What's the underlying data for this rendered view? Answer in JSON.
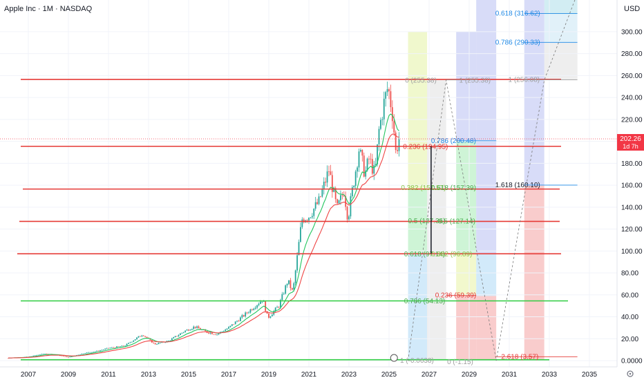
{
  "header": {
    "title": "Apple Inc · 1M · NASDAQ",
    "currency": "USD"
  },
  "price_label": {
    "value": "202.26",
    "countdown": "1d 7h"
  },
  "colors": {
    "up": "#26a69a",
    "down": "#ef5350",
    "ema_fast": "#22c55e",
    "ema_slow": "#ef4444",
    "hline_red": "#e53935",
    "hline_green": "#2ecc40",
    "accent": "#3b82f6"
  },
  "chart_data": {
    "type": "candlestick",
    "title": "Apple Inc · 1M · NASDAQ",
    "x_ticks": [
      "2007",
      "2009",
      "2011",
      "2013",
      "2015",
      "2017",
      "2019",
      "2021",
      "2023",
      "2025",
      "2027",
      "2029",
      "2031",
      "2033",
      "2035"
    ],
    "y_ticks": [
      "0.0000",
      "20.00",
      "40.00",
      "60.00",
      "80.00",
      "100.00",
      "120.00",
      "140.00",
      "160.00",
      "180.00",
      "200.00",
      "220.00",
      "240.00",
      "260.00",
      "280.00",
      "300.00"
    ],
    "ylim": [
      0,
      310
    ],
    "xlim": [
      2006,
      2035.5
    ],
    "last_price": 202.26,
    "approx_close_path": [
      [
        2006.0,
        2.5
      ],
      [
        2007.0,
        3.5
      ],
      [
        2007.8,
        6.5
      ],
      [
        2008.5,
        5.0
      ],
      [
        2009.0,
        3.0
      ],
      [
        2009.8,
        7.0
      ],
      [
        2010.5,
        9.0
      ],
      [
        2011.0,
        11.5
      ],
      [
        2011.8,
        13.5
      ],
      [
        2012.7,
        24.0
      ],
      [
        2013.3,
        15.0
      ],
      [
        2014.0,
        18.0
      ],
      [
        2014.8,
        27.0
      ],
      [
        2015.3,
        31.0
      ],
      [
        2015.9,
        26.0
      ],
      [
        2016.4,
        24.0
      ],
      [
        2017.0,
        30.0
      ],
      [
        2017.8,
        42.0
      ],
      [
        2018.7,
        56.0
      ],
      [
        2018.95,
        39.0
      ],
      [
        2019.5,
        50.0
      ],
      [
        2019.95,
        73.0
      ],
      [
        2020.2,
        62.0
      ],
      [
        2020.65,
        129.0
      ],
      [
        2021.0,
        132.0
      ],
      [
        2021.5,
        145.0
      ],
      [
        2022.0,
        174.0
      ],
      [
        2022.4,
        138.0
      ],
      [
        2022.75,
        155.0
      ],
      [
        2022.95,
        130.0
      ],
      [
        2023.5,
        193.0
      ],
      [
        2023.8,
        170.0
      ],
      [
        2024.0,
        184.0
      ],
      [
        2024.3,
        170.0
      ],
      [
        2024.5,
        210.0
      ],
      [
        2024.75,
        235.0
      ],
      [
        2024.95,
        250.0
      ],
      [
        2025.2,
        222.0
      ],
      [
        2025.33,
        190.0
      ],
      [
        2025.5,
        202.3
      ]
    ],
    "horizontal_levels": [
      {
        "value": 256.5,
        "color": "red"
      },
      {
        "value": 195.5,
        "color": "red"
      },
      {
        "value": 156.5,
        "color": "red"
      },
      {
        "value": 127.0,
        "color": "red"
      },
      {
        "value": 97.5,
        "color": "red"
      },
      {
        "value": 54.5,
        "color": "green"
      },
      {
        "value": 0.8,
        "color": "green"
      }
    ],
    "fib_labels": [
      {
        "text": "0 (255.38)",
        "x": 2025.8,
        "y": 255.4,
        "color": "#9e9e9e"
      },
      {
        "text": "0.236 (194.95)",
        "x": 2025.7,
        "y": 194.95,
        "color": "#e53935"
      },
      {
        "text": "0.382 (157.57)",
        "x": 2025.6,
        "y": 157.6,
        "color": "#8bc34a"
      },
      {
        "text": "0.5 (127.36)",
        "x": 2025.95,
        "y": 127.4,
        "color": "#4caf50"
      },
      {
        "text": "0.618 (97.14)",
        "x": 2025.75,
        "y": 97.1,
        "color": "#4caf50"
      },
      {
        "text": "0.786 (54.13)",
        "x": 2025.75,
        "y": 54.1,
        "color": "#4caf50"
      },
      {
        "text": "1 (-0.0638)",
        "x": 2025.55,
        "y": -0.06,
        "color": "#9e9e9e"
      },
      {
        "text": "1 (255.38)",
        "x": 2028.5,
        "y": 255.4,
        "color": "#9e9e9e"
      },
      {
        "text": "0.786 (200.48)",
        "x": 2027.1,
        "y": 200.5,
        "color": "#1e88e5"
      },
      {
        "text": "0.618 (157.39)",
        "x": 2027.1,
        "y": 157.4,
        "color": "#4caf50"
      },
      {
        "text": "0.5 (127.14)",
        "x": 2027.45,
        "y": 127.1,
        "color": "#4caf50"
      },
      {
        "text": "0.382 (96.89)",
        "x": 2027.1,
        "y": 96.9,
        "color": "#8bc34a"
      },
      {
        "text": "0.236 (59.39)",
        "x": 2027.3,
        "y": 59.4,
        "color": "#e53935"
      },
      {
        "text": "0 (-1.15)",
        "x": 2027.9,
        "y": -1.15,
        "color": "#9e9e9e"
      },
      {
        "text": "0.618 (316.62)",
        "x": 2030.3,
        "y": 316.6,
        "color": "#1e88e5"
      },
      {
        "text": "0.786 (290.33)",
        "x": 2030.3,
        "y": 290.3,
        "color": "#1e88e5"
      },
      {
        "text": "1 (256.08)",
        "x": 2030.95,
        "y": 256.1,
        "color": "#9e9e9e"
      },
      {
        "text": "1.618 (160.10)",
        "x": 2030.3,
        "y": 160.1,
        "color": "#131722"
      },
      {
        "text": "2.618 (3.57)",
        "x": 2030.6,
        "y": 3.57,
        "color": "#e53935"
      }
    ]
  }
}
